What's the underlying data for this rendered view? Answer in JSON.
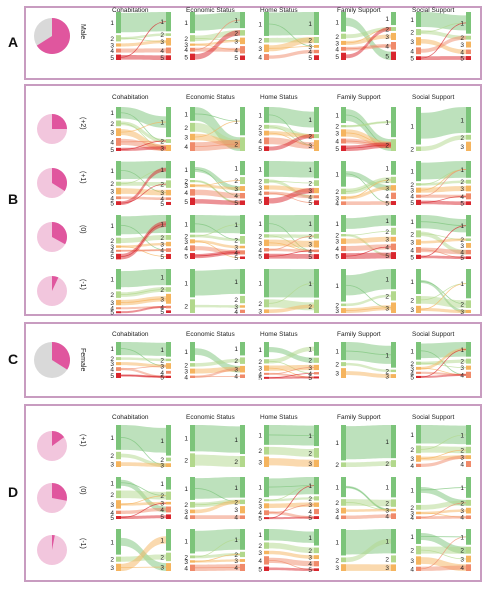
{
  "panels": [
    {
      "letter": "A",
      "top": 6,
      "height": 74,
      "row_top": 12,
      "row_h": 58,
      "head_top": 7,
      "rows": [
        {
          "label": "Male",
          "pie": 0.66,
          "lc": [
            5,
            5,
            4,
            5,
            5
          ],
          "rc": [
            5,
            5,
            5,
            5,
            5
          ]
        }
      ]
    },
    {
      "letter": "B",
      "top": 84,
      "height": 232,
      "row_top": 107,
      "row_h": 54,
      "head_top": 94,
      "rows": [
        {
          "label": "(+2)",
          "pie": 0.25,
          "lc": [
            5,
            4,
            5,
            5,
            2
          ],
          "rc": [
            3,
            2,
            3,
            2,
            3
          ]
        },
        {
          "label": "(+1)",
          "pie": 0.34,
          "lc": [
            5,
            5,
            5,
            4,
            5
          ],
          "rc": [
            5,
            5,
            5,
            5,
            5
          ]
        },
        {
          "label": "(0)",
          "pie": 0.33,
          "lc": [
            5,
            5,
            5,
            5,
            5
          ],
          "rc": [
            5,
            5,
            5,
            5,
            5
          ]
        },
        {
          "label": "(-1)",
          "pie": 0.07,
          "lc": [
            5,
            2,
            3,
            3,
            3
          ],
          "rc": [
            5,
            4,
            2,
            3,
            3
          ]
        }
      ]
    },
    {
      "letter": "C",
      "top": 322,
      "height": 76,
      "row_top": 342,
      "row_h": 46,
      "head_top": 331,
      "rows": [
        {
          "label": "Female",
          "pie": 0.34,
          "lc": [
            5,
            4,
            5,
            3,
            5
          ],
          "rc": [
            5,
            4,
            5,
            3,
            4
          ]
        }
      ]
    },
    {
      "letter": "D",
      "top": 404,
      "height": 178,
      "row_top": 425,
      "row_h": 52,
      "head_top": 414,
      "rows": [
        {
          "label": "(+1)",
          "pie": 0.15,
          "lc": [
            3,
            2,
            3,
            2,
            4
          ],
          "rc": [
            3,
            2,
            3,
            2,
            4
          ]
        },
        {
          "label": "(0)",
          "pie": 0.28,
          "lc": [
            5,
            4,
            5,
            4,
            4
          ],
          "rc": [
            5,
            4,
            5,
            4,
            4
          ]
        },
        {
          "label": "(-1)",
          "pie": 0.03,
          "lc": [
            3,
            4,
            5,
            3,
            4
          ],
          "rc": [
            3,
            4,
            5,
            3,
            4
          ]
        }
      ]
    }
  ],
  "headers": [
    "Cohabitation",
    "Economic Status",
    "Home Status",
    "Family Support",
    "Social Support"
  ],
  "colors": {
    "pie_main": "#d9d9d9",
    "pie_accent": "#e0569e",
    "pie_light": "#f2c6dd",
    "level1": "#7cc47a",
    "level2": "#b2d88c",
    "level3": "#f5b45e",
    "level4": "#f08a6a",
    "level5": "#d9262e",
    "border": "#c89cc0"
  },
  "chart_data": {
    "type": "sankey",
    "title": "",
    "columns": [
      "Cohabitation",
      "Economic Status",
      "Home Status",
      "Family Support",
      "Social Support"
    ],
    "groups": [
      {
        "panel": "A",
        "name": "Male",
        "pie_fraction": 0.66
      },
      {
        "panel": "B",
        "name": "(+2)",
        "pie_fraction": 0.25
      },
      {
        "panel": "B",
        "name": "(+1)",
        "pie_fraction": 0.34
      },
      {
        "panel": "B",
        "name": "(0)",
        "pie_fraction": 0.33
      },
      {
        "panel": "B",
        "name": "(-1)",
        "pie_fraction": 0.07
      },
      {
        "panel": "C",
        "name": "Female",
        "pie_fraction": 0.34
      },
      {
        "panel": "D",
        "name": "(+1)",
        "pie_fraction": 0.15
      },
      {
        "panel": "D",
        "name": "(0)",
        "pie_fraction": 0.28
      },
      {
        "panel": "D",
        "name": "(-1)",
        "pie_fraction": 0.03
      }
    ]
  }
}
